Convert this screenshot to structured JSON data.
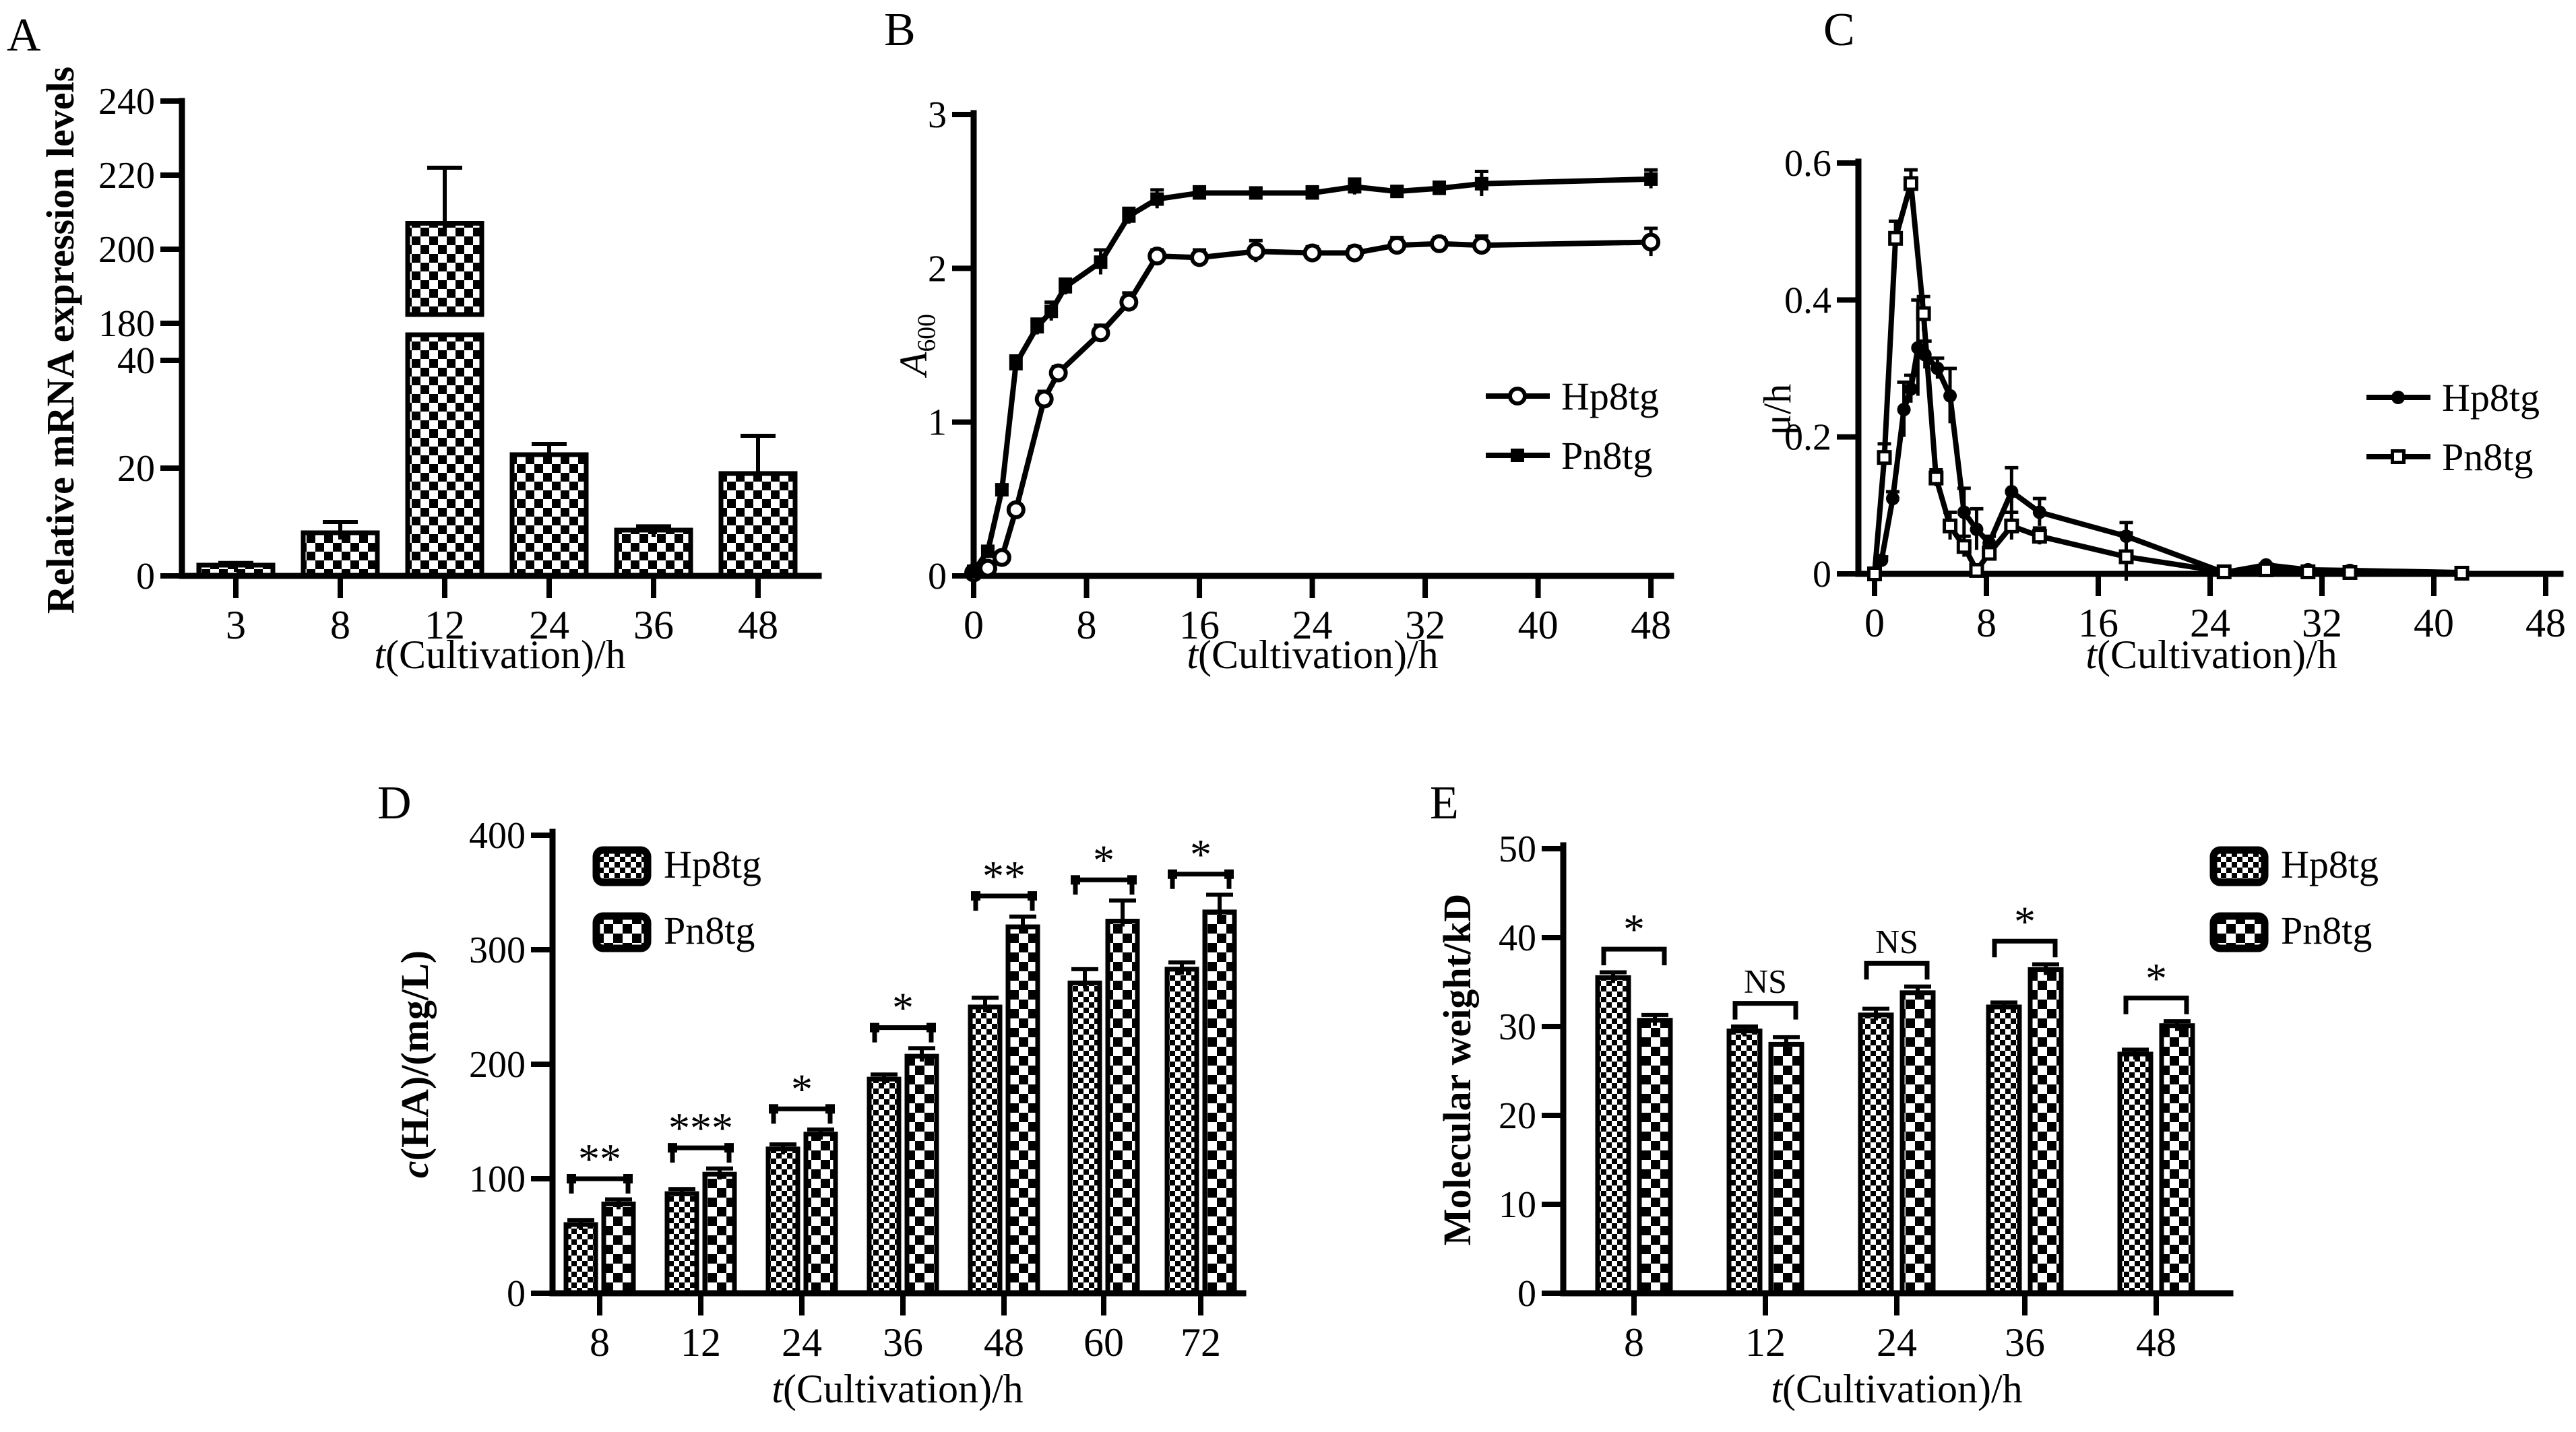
{
  "colors": {
    "ink": "#000000",
    "background": "#ffffff"
  },
  "chart_data": [
    {
      "panel_letter": "A",
      "type": "bar",
      "ylabel": "Relative mRNA expression levels",
      "xlabel": {
        "italic": "t",
        "rest": "(Cultivation)/h"
      },
      "broken_axis": {
        "lower_range": [
          0,
          40
        ],
        "upper_range": [
          180,
          240
        ],
        "lower_ticks": [
          "0",
          "20",
          "40"
        ],
        "upper_ticks": [
          "180",
          "200",
          "220",
          "240"
        ]
      },
      "categories": [
        "3",
        "8",
        "12",
        "24",
        "36",
        "48"
      ],
      "values": [
        2,
        8,
        207,
        22.5,
        8.5,
        19
      ],
      "errors": [
        0.4,
        2,
        15,
        2,
        0.7,
        7
      ],
      "legend_position": "none",
      "grid": false
    },
    {
      "panel_letter": "B",
      "type": "line",
      "ylabel_main": "A",
      "ylabel_sub": "600",
      "xlabel": {
        "italic": "t",
        "rest": "(Cultivation)/h"
      },
      "xlim": [
        0,
        48
      ],
      "ylim": [
        0,
        3
      ],
      "xticks": [
        "0",
        "8",
        "16",
        "24",
        "32",
        "40",
        "48"
      ],
      "yticks": [
        "0",
        "1",
        "2",
        "3"
      ],
      "legend_position": "right-middle",
      "grid": false,
      "series": [
        {
          "name": "Hp8tg",
          "marker": "circle-open",
          "x": [
            0,
            1,
            2,
            3,
            5,
            6,
            9,
            11,
            13,
            16,
            20,
            24,
            27,
            30,
            33,
            36,
            48
          ],
          "y": [
            0.02,
            0.05,
            0.12,
            0.43,
            1.15,
            1.32,
            1.58,
            1.78,
            2.08,
            2.07,
            2.11,
            2.1,
            2.1,
            2.15,
            2.16,
            2.15,
            2.17
          ],
          "err": [
            0.01,
            0.01,
            0.02,
            0.03,
            0.05,
            0.04,
            0.05,
            0.06,
            0.04,
            0.05,
            0.07,
            0.04,
            0.04,
            0.05,
            0.04,
            0.06,
            0.09
          ]
        },
        {
          "name": "Pn8tg",
          "marker": "square-filled",
          "x": [
            0,
            1,
            2,
            3,
            4.5,
            5.5,
            6.5,
            9,
            11,
            13,
            16,
            20,
            24,
            27,
            30,
            33,
            36,
            48
          ],
          "y": [
            0.03,
            0.16,
            0.56,
            1.38,
            1.62,
            1.72,
            1.88,
            2.04,
            2.34,
            2.45,
            2.49,
            2.49,
            2.49,
            2.53,
            2.5,
            2.52,
            2.55,
            2.58
          ],
          "err": [
            0.01,
            0.02,
            0.03,
            0.05,
            0.05,
            0.06,
            0.05,
            0.08,
            0.05,
            0.06,
            0.04,
            0.03,
            0.04,
            0.05,
            0.03,
            0.04,
            0.08,
            0.06
          ]
        }
      ]
    },
    {
      "panel_letter": "C",
      "type": "line",
      "ylabel": "μ/h",
      "xlabel": {
        "italic": "t",
        "rest": "(Cultivation)/h"
      },
      "xlim": [
        0,
        48
      ],
      "ylim": [
        0,
        0.6
      ],
      "xticks": [
        "0",
        "8",
        "16",
        "24",
        "32",
        "40",
        "48"
      ],
      "yticks": [
        "0",
        "0.2",
        "0.4",
        "0.6"
      ],
      "legend_position": "right-middle",
      "grid": false,
      "series": [
        {
          "name": "Hp8tg",
          "marker": "circle-filled",
          "x": [
            0,
            0.5,
            1.3,
            2.1,
            2.6,
            3.1,
            3.6,
            4.5,
            5.4,
            6.4,
            7.3,
            8.2,
            9.8,
            11.8,
            18,
            25,
            28,
            31,
            34,
            42
          ],
          "y": [
            0,
            0.02,
            0.11,
            0.24,
            0.27,
            0.33,
            0.32,
            0.3,
            0.26,
            0.09,
            0.065,
            0.045,
            0.12,
            0.09,
            0.055,
            0.002,
            0.013,
            0.006,
            0.005,
            0.002
          ],
          "err": [
            0,
            0.005,
            0.01,
            0.04,
            0.02,
            0.07,
            0.02,
            0.015,
            0.04,
            0.035,
            0.03,
            0.01,
            0.035,
            0.02,
            0.02,
            0.002,
            0.004,
            0.003,
            0.002,
            0.001
          ]
        },
        {
          "name": "Pn8tg",
          "marker": "square-open",
          "x": [
            0,
            0.7,
            1.5,
            2.6,
            3.5,
            4.4,
            5.4,
            6.4,
            7.3,
            8.2,
            9.8,
            11.8,
            18,
            25,
            28,
            31,
            34,
            42
          ],
          "y": [
            0,
            0.17,
            0.49,
            0.57,
            0.38,
            0.14,
            0.07,
            0.04,
            0.005,
            0.03,
            0.07,
            0.055,
            0.025,
            0.003,
            0.006,
            0.003,
            0.002,
            0.001
          ],
          "err": [
            0,
            0.02,
            0.025,
            0.02,
            0.025,
            0.012,
            0.02,
            0.015,
            0.004,
            0.01,
            0.02,
            0.012,
            0.035,
            0.002,
            0.003,
            0.002,
            0.001,
            0.001
          ]
        }
      ]
    },
    {
      "panel_letter": "D",
      "type": "grouped-bar",
      "ylabel_italic": "c",
      "ylabel_rest": "(HA)/(mg/L)",
      "xlabel": {
        "italic": "t",
        "rest": "(Cultivation)/h"
      },
      "ylim": [
        0,
        400
      ],
      "yticks": [
        "0",
        "100",
        "200",
        "300",
        "400"
      ],
      "categories": [
        "8",
        "12",
        "24",
        "36",
        "48",
        "60",
        "72"
      ],
      "legend_position": "top-left",
      "grid": false,
      "series": [
        {
          "name": "Hp8tg",
          "pattern": "fine",
          "values": [
            60,
            87,
            126,
            187,
            250,
            271,
            283
          ],
          "err": [
            4,
            4,
            4,
            4,
            8,
            12,
            6
          ]
        },
        {
          "name": "Pn8tg",
          "pattern": "coarse",
          "values": [
            78,
            104,
            139,
            207,
            320,
            325,
            333
          ],
          "err": [
            4,
            5,
            4,
            7,
            9,
            18,
            15
          ]
        }
      ],
      "significance": [
        "**",
        "***",
        "*",
        "*",
        "**",
        "*",
        "*"
      ]
    },
    {
      "panel_letter": "E",
      "type": "grouped-bar",
      "ylabel": "Molecular weight/kD",
      "xlabel": {
        "italic": "t",
        "rest": "(Cultivation)/h"
      },
      "ylim": [
        0,
        50
      ],
      "yticks": [
        "0",
        "10",
        "20",
        "30",
        "40",
        "50"
      ],
      "categories": [
        "8",
        "12",
        "24",
        "36",
        "48"
      ],
      "legend_position": "top-right",
      "grid": false,
      "series": [
        {
          "name": "Hp8tg",
          "pattern": "fine",
          "values": [
            35.5,
            29.5,
            31.3,
            32.2,
            26.9
          ],
          "err": [
            0.6,
            0.5,
            0.7,
            0.5,
            0.5
          ]
        },
        {
          "name": "Pn8tg",
          "pattern": "coarse",
          "values": [
            30.7,
            28.0,
            33.8,
            36.4,
            30.1
          ],
          "err": [
            0.6,
            0.8,
            0.7,
            0.6,
            0.5
          ]
        }
      ],
      "significance": [
        "*",
        "NS",
        "NS",
        "*",
        "*"
      ]
    }
  ]
}
